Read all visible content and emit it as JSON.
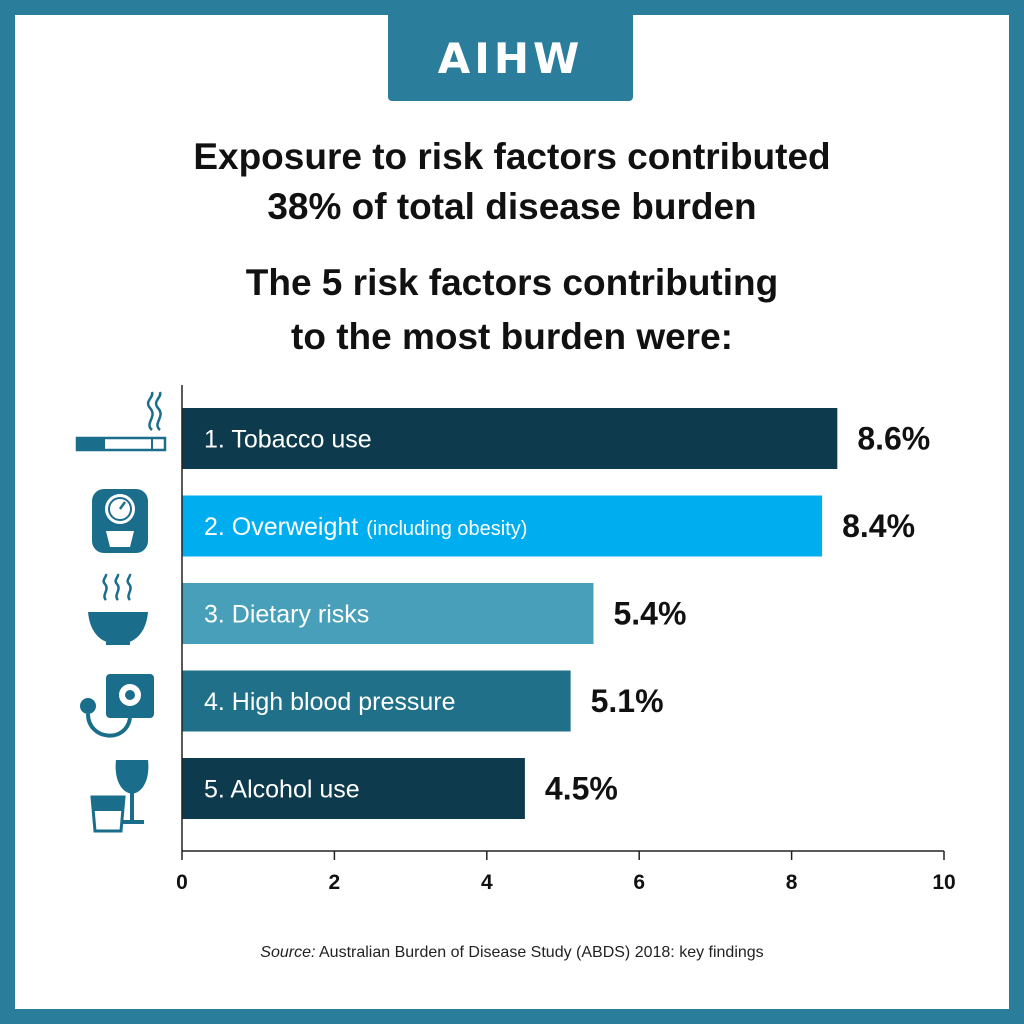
{
  "logo": {
    "text": "AIHW"
  },
  "header": {
    "title_line1": "Exposure to risk factors contributed",
    "title_line2": "38% of total disease burden",
    "subtitle_line1": "The 5 risk factors contributing",
    "subtitle_line2": "to the most burden were:"
  },
  "colors": {
    "frame": "#2a7e9c",
    "bar_dark": "#0d3a4c",
    "bar_bright": "#00adef",
    "bar_light": "#479fba",
    "bar_mid": "#20708a",
    "icon": "#1a6e8c"
  },
  "chart_data": {
    "type": "bar",
    "orientation": "horizontal",
    "categories": [
      "1. Tobacco use",
      "2. Overweight",
      "3. Dietary risks",
      "4. High blood pressure",
      "5. Alcohol use"
    ],
    "category_notes": [
      "",
      "(including obesity)",
      "",
      "",
      ""
    ],
    "values": [
      8.6,
      8.4,
      5.4,
      5.1,
      4.5
    ],
    "value_labels": [
      "8.6%",
      "8.4%",
      "5.4%",
      "5.1%",
      "4.5%"
    ],
    "bar_colors": [
      "#0d3a4c",
      "#00adef",
      "#479fba",
      "#20708a",
      "#0d3a4c"
    ],
    "icons": [
      "cigarette-icon",
      "weighing-scale-icon",
      "hot-bowl-icon",
      "blood-pressure-monitor-icon",
      "drinks-icon"
    ],
    "xlim": [
      0,
      10
    ],
    "xticks": [
      "0",
      "2",
      "4",
      "6",
      "8",
      "10"
    ],
    "xtick_values": [
      0,
      2,
      4,
      6,
      8,
      10
    ],
    "grid": false
  },
  "source": {
    "label": "Source:",
    "text": " Australian Burden of Disease Study (ABDS) 2018: key findings"
  }
}
